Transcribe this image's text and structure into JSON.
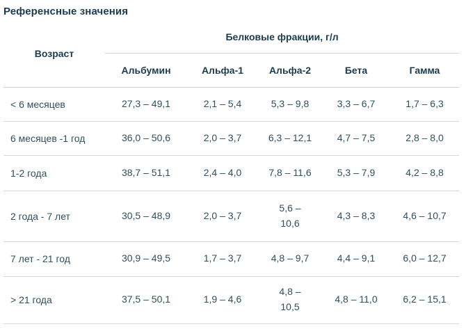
{
  "title": "Референсные значения",
  "table": {
    "corner_header": "Возраст",
    "group_header": "Белковые фракции, г/л",
    "columns": [
      "Альбумин",
      "Альфа-1",
      "Альфа-2",
      "Бета",
      "Гамма"
    ],
    "rows": [
      {
        "age": "< 6 месяцев",
        "values": [
          "27,3 – 49,1",
          "2,1 – 5,4",
          "5,3 – 9,8",
          "3,3 – 6,7",
          "1,7 – 6,3"
        ]
      },
      {
        "age": "6 месяцев -1 год",
        "values": [
          "36,0 – 50,6",
          "2,0 – 3,7",
          "6,3 – 12,1",
          "4,7 – 7,5",
          "2,8 – 8,0"
        ]
      },
      {
        "age": "1-2 года",
        "values": [
          "38,7 – 51,1",
          "2,4 – 4,0",
          "7,8 – 11,6",
          "5,3 – 7,9",
          "4,2 – 8,8"
        ]
      },
      {
        "age": "2 года - 7 лет",
        "values": [
          "30,5 – 48,9",
          "2,0 – 3,7",
          "5,6 –\n10,6",
          "4,3 – 8,3",
          "4,6 – 10,7"
        ]
      },
      {
        "age": "7 лет - 21 год",
        "values": [
          "30,9 – 49,5",
          "1,7 – 3,7",
          "4,8 – 9,7",
          "4,4 – 9,1",
          "6,0 – 12,7"
        ]
      },
      {
        "age": "> 21 года",
        "values": [
          "37,5 – 50,1",
          "1,9 – 4,6",
          "4,8 –\n10,5",
          "4,8 – 11,0",
          "6,2 – 15,1"
        ]
      }
    ]
  },
  "colors": {
    "heading_text": "#1c3b4e",
    "body_text": "#2f4f5e",
    "divider": "#d3dadc",
    "background": "#ffffff"
  }
}
